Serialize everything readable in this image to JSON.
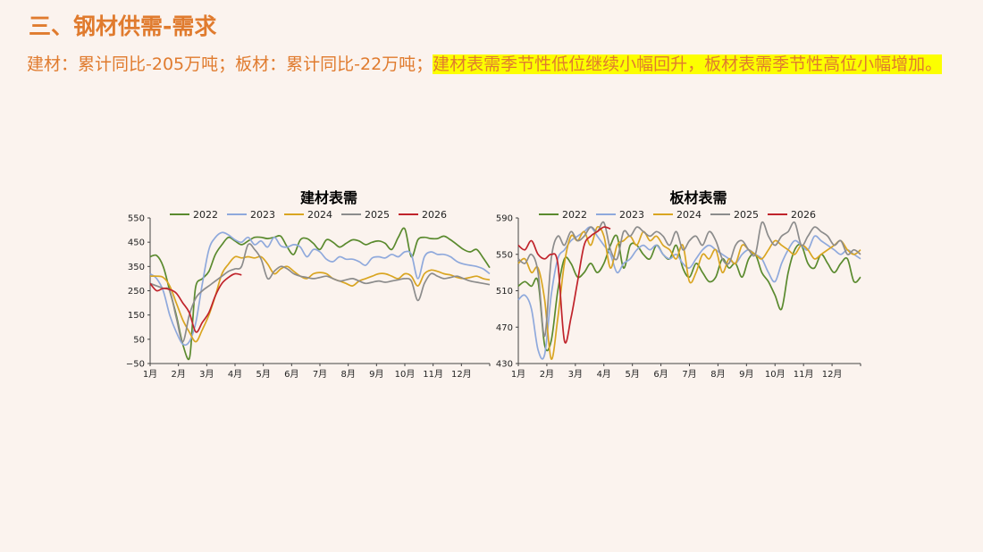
{
  "header": {
    "title": "三、钢材供需-需求",
    "subtitle_plain": "建材：累计同比-205万吨；板材：累计同比-22万吨；",
    "subtitle_highlight": "建材表需季节性低位继续小幅回升，板材表需季节性高位小幅增加。"
  },
  "chart_data": [
    {
      "type": "line",
      "title": "建材表需",
      "x_ticks": [
        "1月",
        "2月",
        "3月",
        "4月",
        "5月",
        "6月",
        "7月",
        "8月",
        "9月",
        "10月",
        "11月",
        "12月"
      ],
      "y_ticks": [
        "550",
        "450",
        "350",
        "250",
        "150",
        "50",
        "−50"
      ],
      "ylim": [
        -50,
        550
      ],
      "xlim": [
        1,
        53
      ],
      "legend_placement": "top",
      "series": [
        {
          "name": "2022",
          "color": "#5a8a2e",
          "x": [
            1,
            2,
            3,
            4,
            5,
            6,
            7,
            7.5,
            8,
            9,
            10,
            11,
            12,
            13,
            14,
            15,
            16,
            17,
            18,
            19,
            20,
            21,
            22,
            23,
            24,
            25,
            26,
            27,
            28,
            29,
            30,
            31,
            32,
            33,
            34,
            35,
            36,
            37,
            38,
            39,
            40,
            41,
            42,
            43,
            44,
            45,
            46,
            47,
            48,
            49,
            50,
            51,
            52,
            53
          ],
          "y": [
            390,
            395,
            350,
            250,
            150,
            30,
            -30,
            120,
            270,
            300,
            330,
            400,
            440,
            470,
            455,
            440,
            455,
            470,
            470,
            465,
            470,
            475,
            430,
            400,
            460,
            465,
            445,
            420,
            460,
            450,
            430,
            445,
            460,
            455,
            440,
            450,
            455,
            445,
            420,
            470,
            505,
            390,
            460,
            470,
            465,
            465,
            475,
            460,
            440,
            420,
            410,
            420,
            385,
            345
          ]
        },
        {
          "name": "2023",
          "color": "#8fa9dc",
          "x": [
            1,
            2,
            3,
            4,
            5,
            6,
            7,
            8,
            9,
            10,
            11,
            12,
            13,
            14,
            15,
            16,
            17,
            18,
            19,
            20,
            21,
            22,
            23,
            24,
            25,
            26,
            27,
            28,
            29,
            30,
            31,
            32,
            33,
            34,
            35,
            36,
            37,
            38,
            39,
            40,
            41,
            42,
            43,
            44,
            45,
            46,
            47,
            48,
            49,
            50,
            51,
            52,
            53
          ],
          "y": [
            320,
            300,
            250,
            150,
            80,
            30,
            40,
            120,
            280,
            420,
            470,
            490,
            480,
            460,
            450,
            470,
            440,
            455,
            430,
            470,
            435,
            430,
            440,
            430,
            390,
            420,
            410,
            380,
            370,
            390,
            380,
            380,
            370,
            355,
            385,
            390,
            385,
            400,
            390,
            410,
            400,
            300,
            390,
            410,
            400,
            400,
            390,
            370,
            360,
            355,
            350,
            340,
            320
          ]
        },
        {
          "name": "2024",
          "color": "#d9a521",
          "x": [
            1,
            2,
            3,
            4,
            5,
            6,
            7,
            8,
            9,
            10,
            11,
            12,
            13,
            14,
            15,
            16,
            17,
            18,
            19,
            20,
            21,
            22,
            23,
            24,
            25,
            26,
            27,
            28,
            29,
            30,
            31,
            32,
            33,
            34,
            35,
            36,
            37,
            38,
            39,
            40,
            41,
            42,
            43,
            44,
            45,
            46,
            47,
            48,
            49,
            50,
            51,
            52,
            53
          ],
          "y": [
            310,
            310,
            305,
            270,
            200,
            130,
            80,
            40,
            90,
            150,
            230,
            320,
            360,
            390,
            385,
            390,
            385,
            390,
            360,
            320,
            340,
            350,
            330,
            310,
            300,
            320,
            325,
            320,
            300,
            290,
            280,
            270,
            290,
            300,
            310,
            320,
            320,
            310,
            300,
            320,
            310,
            270,
            320,
            335,
            330,
            320,
            315,
            305,
            300,
            305,
            310,
            300,
            295
          ]
        },
        {
          "name": "2025",
          "color": "#8c8c8c",
          "x": [
            1,
            2,
            3,
            4,
            5,
            6,
            7,
            8,
            9,
            10,
            11,
            12,
            13,
            14,
            15,
            16,
            17,
            18,
            19,
            20,
            21,
            22,
            23,
            24,
            25,
            26,
            27,
            28,
            29,
            30,
            31,
            32,
            33,
            34,
            35,
            36,
            37,
            38,
            39,
            40,
            41,
            42,
            43,
            44,
            45,
            46,
            47,
            48,
            49,
            50,
            51,
            52,
            53
          ],
          "y": [
            280,
            270,
            260,
            250,
            140,
            40,
            150,
            220,
            250,
            270,
            290,
            310,
            330,
            340,
            350,
            440,
            420,
            380,
            300,
            330,
            350,
            340,
            320,
            310,
            305,
            300,
            305,
            310,
            300,
            290,
            295,
            300,
            290,
            280,
            285,
            290,
            285,
            290,
            295,
            300,
            290,
            210,
            280,
            320,
            310,
            300,
            305,
            310,
            300,
            290,
            285,
            280,
            275
          ]
        },
        {
          "name": "2026",
          "color": "#c0232b",
          "x": [
            1,
            2,
            3,
            4,
            5,
            6,
            7,
            8,
            9,
            10,
            11,
            12,
            13,
            14,
            15
          ],
          "y": [
            280,
            250,
            260,
            255,
            240,
            200,
            160,
            80,
            120,
            160,
            230,
            280,
            305,
            320,
            315
          ]
        }
      ]
    },
    {
      "type": "line",
      "title": "板材表需",
      "x_ticks": [
        "1月",
        "2月",
        "3月",
        "4月",
        "5月",
        "6月",
        "7月",
        "8月",
        "9月",
        "10月",
        "11月",
        "12月"
      ],
      "y_ticks": [
        "590",
        "550",
        "510",
        "470",
        "430"
      ],
      "ylim": [
        430,
        590
      ],
      "xlim": [
        1,
        53
      ],
      "legend_placement": "top",
      "series": [
        {
          "name": "2022",
          "color": "#5a8a2e",
          "x": [
            1,
            2,
            3,
            4,
            5,
            6,
            7,
            8,
            9,
            10,
            11,
            12,
            13,
            14,
            15,
            16,
            17,
            18,
            19,
            20,
            21,
            22,
            23,
            24,
            25,
            26,
            27,
            28,
            29,
            30,
            31,
            32,
            33,
            34,
            35,
            36,
            37,
            38,
            39,
            40,
            41,
            42,
            43,
            44,
            45,
            46,
            47,
            48,
            49,
            50,
            51,
            52,
            53
          ],
          "y": [
            515,
            520,
            515,
            520,
            450,
            455,
            510,
            545,
            540,
            525,
            530,
            540,
            530,
            540,
            560,
            570,
            535,
            560,
            560,
            550,
            545,
            560,
            550,
            545,
            560,
            535,
            525,
            540,
            530,
            520,
            525,
            545,
            535,
            540,
            525,
            545,
            550,
            530,
            520,
            505,
            490,
            530,
            555,
            560,
            540,
            535,
            550,
            540,
            530,
            540,
            545,
            520,
            525
          ]
        },
        {
          "name": "2023",
          "color": "#8fa9dc",
          "x": [
            1,
            2,
            3,
            4,
            5,
            6,
            7,
            8,
            9,
            10,
            11,
            12,
            13,
            14,
            15,
            16,
            17,
            18,
            19,
            20,
            21,
            22,
            23,
            24,
            25,
            26,
            27,
            28,
            29,
            30,
            31,
            32,
            33,
            34,
            35,
            36,
            37,
            38,
            39,
            40,
            41,
            42,
            43,
            44,
            45,
            46,
            47,
            48,
            49,
            50,
            51,
            52,
            53
          ],
          "y": [
            500,
            505,
            490,
            445,
            440,
            505,
            545,
            555,
            565,
            570,
            575,
            580,
            570,
            560,
            550,
            530,
            540,
            545,
            555,
            560,
            555,
            560,
            550,
            545,
            550,
            540,
            535,
            545,
            555,
            560,
            555,
            550,
            545,
            540,
            550,
            555,
            550,
            545,
            530,
            520,
            540,
            555,
            565,
            560,
            555,
            570,
            565,
            560,
            555,
            550,
            555,
            550,
            545
          ]
        },
        {
          "name": "2024",
          "color": "#d9a521",
          "x": [
            1,
            2,
            3,
            4,
            5,
            6,
            7,
            8,
            9,
            10,
            11,
            12,
            13,
            14,
            15,
            16,
            17,
            18,
            19,
            20,
            21,
            22,
            23,
            24,
            25,
            26,
            27,
            28,
            29,
            30,
            31,
            32,
            33,
            34,
            35,
            36,
            37,
            38,
            39,
            40,
            41,
            42,
            43,
            44,
            45,
            46,
            47,
            48,
            49,
            50,
            51,
            52,
            53
          ],
          "y": [
            540,
            545,
            530,
            535,
            500,
            435,
            480,
            540,
            570,
            565,
            575,
            560,
            580,
            570,
            535,
            560,
            565,
            570,
            560,
            575,
            565,
            570,
            560,
            555,
            545,
            560,
            520,
            530,
            550,
            545,
            555,
            530,
            545,
            540,
            560,
            555,
            550,
            545,
            555,
            565,
            560,
            555,
            550,
            560,
            555,
            545,
            550,
            555,
            560,
            565,
            555,
            550,
            555
          ]
        },
        {
          "name": "2025",
          "color": "#8c8c8c",
          "x": [
            1,
            2,
            3,
            4,
            5,
            6,
            7,
            8,
            9,
            10,
            11,
            12,
            13,
            14,
            15,
            16,
            17,
            18,
            19,
            20,
            21,
            22,
            23,
            24,
            25,
            26,
            27,
            28,
            29,
            30,
            31,
            32,
            33,
            34,
            35,
            36,
            37,
            38,
            39,
            40,
            41,
            42,
            43,
            44,
            45,
            46,
            47,
            48,
            49,
            50,
            51,
            52,
            53
          ],
          "y": [
            545,
            540,
            550,
            530,
            460,
            545,
            570,
            560,
            575,
            565,
            570,
            580,
            575,
            585,
            555,
            545,
            575,
            570,
            580,
            575,
            570,
            575,
            570,
            560,
            575,
            555,
            565,
            570,
            560,
            575,
            565,
            545,
            540,
            560,
            565,
            555,
            550,
            585,
            570,
            560,
            570,
            575,
            585,
            560,
            570,
            580,
            575,
            570,
            560,
            565,
            550,
            555,
            550
          ]
        },
        {
          "name": "2026",
          "color": "#c0232b",
          "x": [
            1,
            2,
            3,
            4,
            5,
            6,
            7,
            8,
            9,
            10,
            11,
            12,
            13,
            14,
            15
          ],
          "y": [
            560,
            555,
            565,
            550,
            545,
            550,
            540,
            455,
            480,
            520,
            560,
            570,
            575,
            580,
            578
          ]
        }
      ]
    }
  ]
}
